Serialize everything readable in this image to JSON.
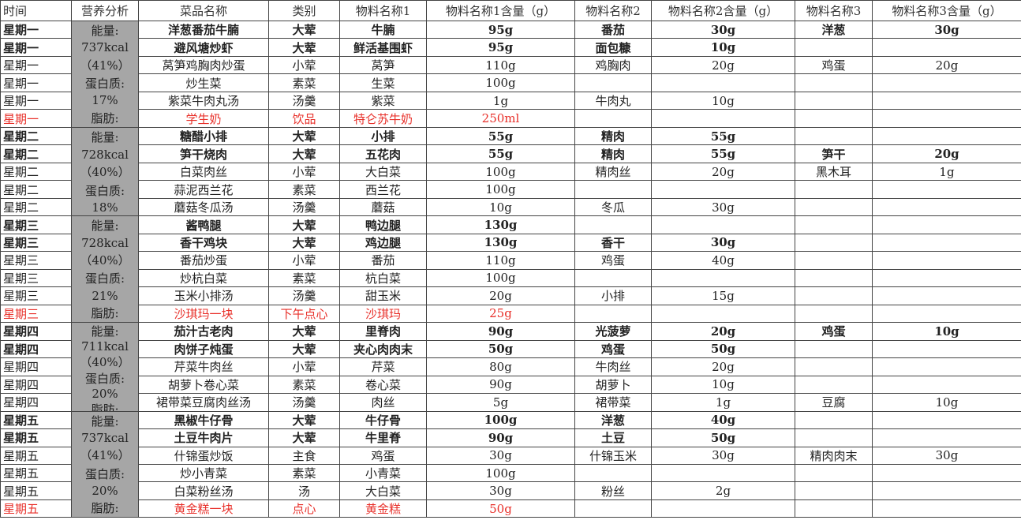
{
  "table": {
    "header": [
      "时间",
      "营养分析",
      "菜品名称",
      "类别",
      "物料名称1",
      "物料名称1含量（g）",
      "物料名称2",
      "物料名称2含量（g）",
      "物料名称3",
      "物料名称3含量（g）"
    ],
    "days": [
      {
        "nutrition": [
          "能量:",
          "737kcal",
          "（41%）",
          "蛋白质:",
          "17%",
          "脂肪:"
        ],
        "rows": [
          {
            "style": "bold",
            "cells": [
              "星期一",
              "洋葱番茄牛腩",
              "大荤",
              "牛腩",
              "95g",
              "番茄",
              "30g",
              "洋葱",
              "30g"
            ]
          },
          {
            "style": "bold",
            "cells": [
              "星期一",
              "避风塘炒虾",
              "大荤",
              "鲜活基围虾",
              "95g",
              "面包糠",
              "10g",
              null,
              null
            ]
          },
          {
            "style": "normal",
            "cells": [
              "星期一",
              "莴笋鸡胸肉炒蛋",
              "小荤",
              "莴笋",
              "110g",
              "鸡胸肉",
              "20g",
              "鸡蛋",
              "20g"
            ]
          },
          {
            "style": "normal",
            "cells": [
              "星期一",
              "炒生菜",
              "素菜",
              "生菜",
              "100g",
              null,
              null,
              null,
              null
            ]
          },
          {
            "style": "normal",
            "cells": [
              "星期一",
              "紫菜牛肉丸汤",
              "汤羹",
              "紫菜",
              "1g",
              "牛肉丸",
              "10g",
              null,
              null
            ]
          },
          {
            "style": "red",
            "cells": [
              "星期一",
              "学生奶",
              "饮品",
              "特仑苏牛奶",
              "250ml",
              null,
              null,
              null,
              null
            ]
          }
        ]
      },
      {
        "nutrition": [
          "能量:",
          "728kcal",
          "（40%）",
          "蛋白质:",
          "18%"
        ],
        "rows": [
          {
            "style": "bold",
            "cells": [
              "星期二",
              "糖醋小排",
              "大荤",
              "小排",
              "55g",
              "精肉",
              "55g",
              null,
              null
            ]
          },
          {
            "style": "bold",
            "cells": [
              "星期二",
              "笋干烧肉",
              "大荤",
              "五花肉",
              "55g",
              "精肉",
              "55g",
              "笋干",
              "20g"
            ]
          },
          {
            "style": "normal",
            "cells": [
              "星期二",
              "白菜肉丝",
              "小荤",
              "大白菜",
              "100g",
              "精肉丝",
              "20g",
              "黑木耳",
              "1g"
            ]
          },
          {
            "style": "normal",
            "cells": [
              "星期二",
              "蒜泥西兰花",
              "素菜",
              "西兰花",
              "100g",
              null,
              null,
              null,
              null
            ]
          },
          {
            "style": "normal",
            "cells": [
              "星期二",
              "蘑菇冬瓜汤",
              "汤羹",
              "蘑菇",
              "10g",
              "冬瓜",
              "30g",
              null,
              null
            ]
          }
        ]
      },
      {
        "nutrition": [
          "能量:",
          "728kcal",
          "（40%）",
          "蛋白质:",
          "21%",
          "脂肪:"
        ],
        "rows": [
          {
            "style": "bold",
            "cells": [
              "星期三",
              "酱鸭腿",
              "大荤",
              "鸭边腿",
              "130g",
              null,
              null,
              null,
              null
            ]
          },
          {
            "style": "bold",
            "cells": [
              "星期三",
              "香干鸡块",
              "大荤",
              "鸡边腿",
              "130g",
              "香干",
              "30g",
              null,
              null
            ]
          },
          {
            "style": "normal",
            "cells": [
              "星期三",
              "番茄炒蛋",
              "小荤",
              "番茄",
              "110g",
              "鸡蛋",
              "40g",
              null,
              null
            ]
          },
          {
            "style": "normal",
            "cells": [
              "星期三",
              "炒杭白菜",
              "素菜",
              "杭白菜",
              "100g",
              null,
              null,
              null,
              null
            ]
          },
          {
            "style": "normal",
            "cells": [
              "星期三",
              "玉米小排汤",
              "汤羹",
              "甜玉米",
              "20g",
              "小排",
              "15g",
              null,
              null
            ]
          },
          {
            "style": "red",
            "cells": [
              "星期三",
              "沙琪玛一块",
              "下午点心",
              "沙琪玛",
              "25g",
              null,
              null,
              null,
              null
            ]
          }
        ]
      },
      {
        "nutrition": [
          "能量:",
          "711kcal",
          "（40%）",
          "蛋白质:",
          "20%",
          "脂肪:"
        ],
        "rows": [
          {
            "style": "bold",
            "cells": [
              "星期四",
              "茄汁古老肉",
              "大荤",
              "里脊肉",
              "90g",
              "光菠萝",
              "20g",
              "鸡蛋",
              "10g"
            ]
          },
          {
            "style": "bold",
            "cells": [
              "星期四",
              "肉饼子炖蛋",
              "大荤",
              "夹心肉肉末",
              "50g",
              "鸡蛋",
              "50g",
              null,
              null
            ]
          },
          {
            "style": "normal",
            "cells": [
              "星期四",
              "芹菜牛肉丝",
              "小荤",
              "芹菜",
              "80g",
              "牛肉丝",
              "20g",
              null,
              null
            ]
          },
          {
            "style": "normal",
            "cells": [
              "星期四",
              "胡萝卜卷心菜",
              "素菜",
              "卷心菜",
              "90g",
              "胡萝卜",
              "10g",
              null,
              null
            ]
          },
          {
            "style": "normal",
            "cells": [
              "星期四",
              "裙带菜豆腐肉丝汤",
              "汤羹",
              "肉丝",
              "5g",
              "裙带菜",
              "1g",
              "豆腐",
              "10g"
            ]
          }
        ]
      },
      {
        "nutrition": [
          "能量:",
          "737kcal",
          "（41%）",
          "蛋白质:",
          "20%",
          "脂肪:"
        ],
        "rows": [
          {
            "style": "bold",
            "cells": [
              "星期五",
              "黑椒牛仔骨",
              "大荤",
              "牛仔骨",
              "100g",
              "洋葱",
              "40g",
              null,
              null
            ]
          },
          {
            "style": "bold",
            "cells": [
              "星期五",
              "土豆牛肉片",
              "大荤",
              "牛里脊",
              "90g",
              "土豆",
              "50g",
              null,
              null
            ]
          },
          {
            "style": "normal",
            "cells": [
              "星期五",
              "什锦蛋炒饭",
              "主食",
              "鸡蛋",
              "30g",
              "什锦玉米",
              "30g",
              "精肉肉末",
              "30g"
            ]
          },
          {
            "style": "normal",
            "cells": [
              "星期五",
              "炒小青菜",
              "素菜",
              "小青菜",
              "100g",
              null,
              null,
              null,
              null
            ]
          },
          {
            "style": "normal",
            "cells": [
              "星期五",
              "白菜粉丝汤",
              "汤",
              "大白菜",
              "30g",
              "粉丝",
              "2g",
              null,
              null
            ]
          },
          {
            "style": "red",
            "cells": [
              "星期五",
              "黄金糕一块",
              "点心",
              "黄金糕",
              "50g",
              null,
              null,
              null,
              null
            ]
          }
        ]
      }
    ]
  }
}
